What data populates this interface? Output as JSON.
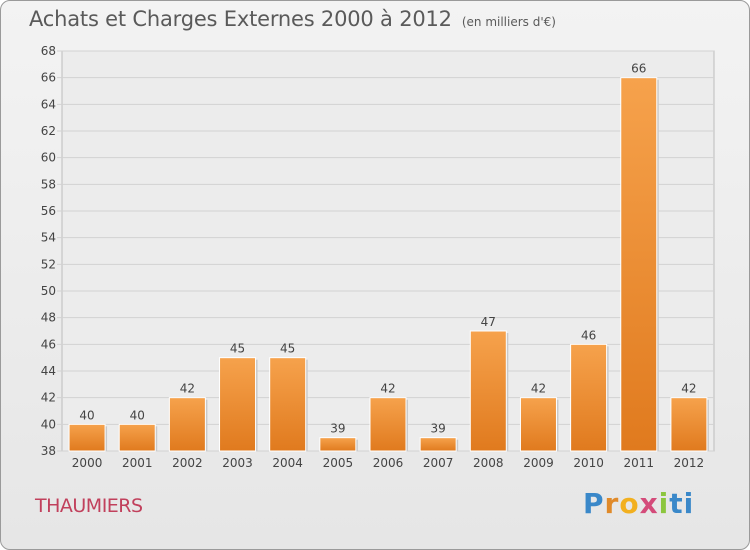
{
  "title": "Achats et Charges Externes 2000 à 2012",
  "unit": "(en milliers d'€)",
  "town": "THAUMIERS",
  "logo": {
    "letters": [
      "P",
      "r",
      "o",
      "x",
      "i",
      "t",
      "i"
    ],
    "colors": [
      "#3a88c9",
      "#e08a2a",
      "#f2b01f",
      "#d44b7a",
      "#8cc63e",
      "#3a88c9",
      "#3a88c9"
    ]
  },
  "colors": {
    "bar_light": "#f6a24c",
    "bar_dark": "#e07a1e",
    "grid": "#d2d2d2",
    "title": "#5a5a5a",
    "town": "#c1405c"
  },
  "chart_data": {
    "type": "bar",
    "categories": [
      "2000",
      "2001",
      "2002",
      "2003",
      "2004",
      "2005",
      "2006",
      "2007",
      "2008",
      "2009",
      "2010",
      "2011",
      "2012"
    ],
    "values": [
      40,
      40,
      42,
      45,
      45,
      39,
      42,
      39,
      47,
      42,
      46,
      66,
      42
    ],
    "ylim": [
      38,
      68
    ],
    "yticks": [
      38,
      40,
      42,
      44,
      46,
      48,
      50,
      52,
      54,
      56,
      58,
      60,
      62,
      64,
      66,
      68
    ],
    "grid": true,
    "legend": "none",
    "title": "Achats et Charges Externes 2000 à 2012",
    "xlabel": "",
    "ylabel": ""
  }
}
